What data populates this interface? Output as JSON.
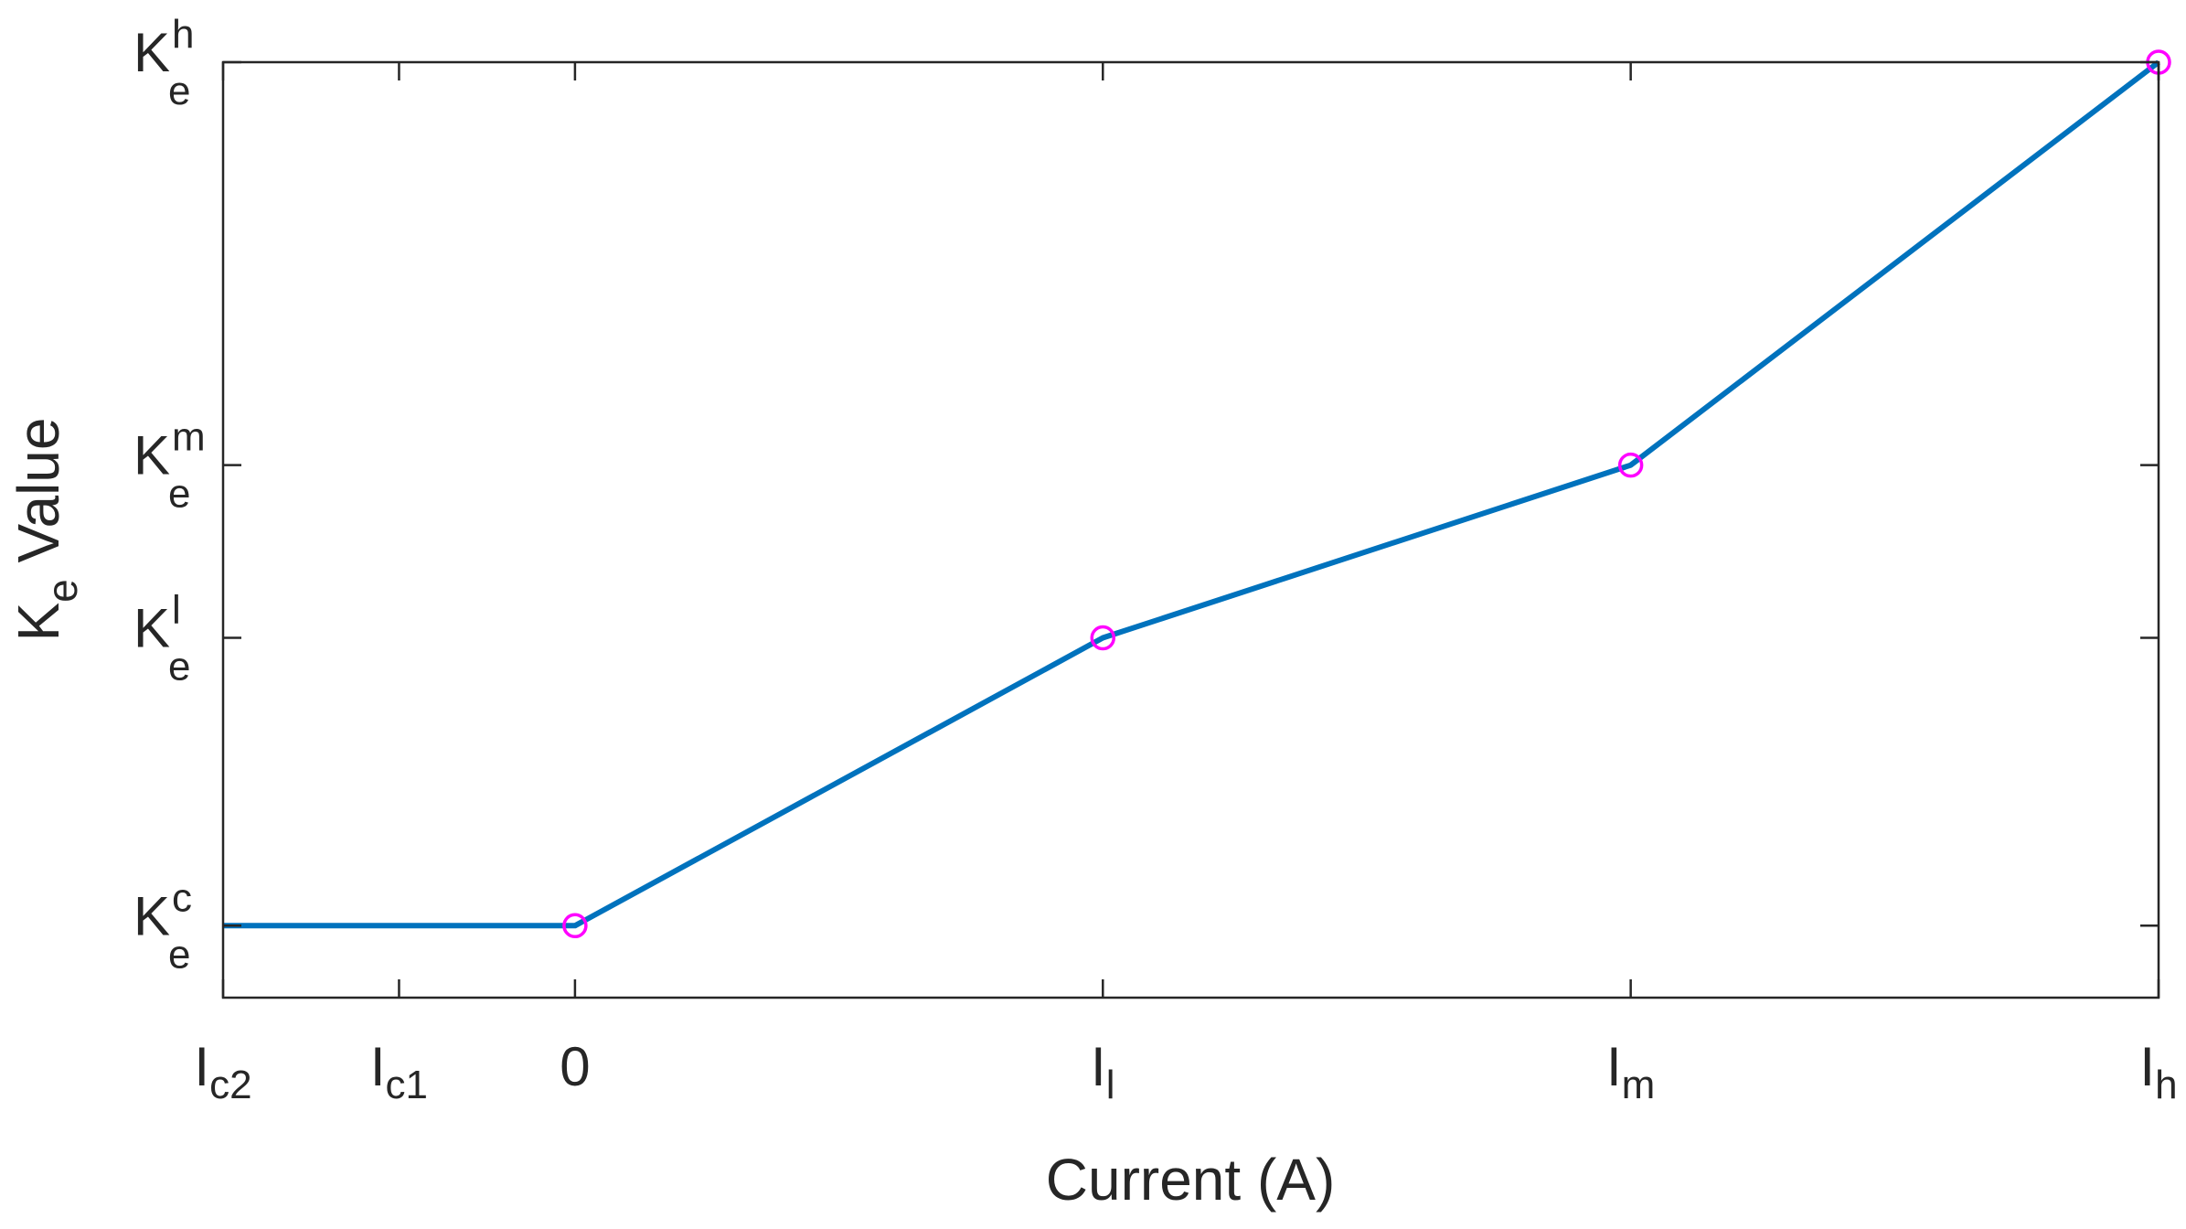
{
  "chart_data": {
    "type": "line",
    "title": "",
    "xlabel": "Current (A)",
    "ylabel": {
      "main": "K",
      "sub": "e",
      "rest": " Value"
    },
    "xlim": [
      -2,
      9
    ],
    "ylim": [
      -0.5,
      6
    ],
    "grid": false,
    "box": true,
    "x_ticks": [
      {
        "value": -2,
        "main": "I",
        "sub": "c2"
      },
      {
        "value": -1,
        "main": "I",
        "sub": "c1"
      },
      {
        "value": 0,
        "main": "0",
        "sub": ""
      },
      {
        "value": 3,
        "main": "I",
        "sub": "l"
      },
      {
        "value": 6,
        "main": "I",
        "sub": "m"
      },
      {
        "value": 9,
        "main": "I",
        "sub": "h"
      }
    ],
    "y_ticks": [
      {
        "value": 0,
        "main": "K",
        "sub": "e",
        "sup": "c"
      },
      {
        "value": 2,
        "main": "K",
        "sub": "e",
        "sup": "l"
      },
      {
        "value": 3.2,
        "main": "K",
        "sub": "e",
        "sup": "m"
      },
      {
        "value": 6,
        "main": "K",
        "sub": "e",
        "sup": "h"
      }
    ],
    "series": [
      {
        "style": "line",
        "color": "#0072BD",
        "x": [
          -2,
          0,
          3,
          6,
          9
        ],
        "y": [
          0,
          0,
          2,
          3.2,
          6
        ]
      },
      {
        "style": "circle-markers",
        "color": "#FF00FF",
        "x": [
          0,
          3,
          6,
          9
        ],
        "y": [
          0,
          2,
          3.2,
          6
        ]
      }
    ]
  }
}
